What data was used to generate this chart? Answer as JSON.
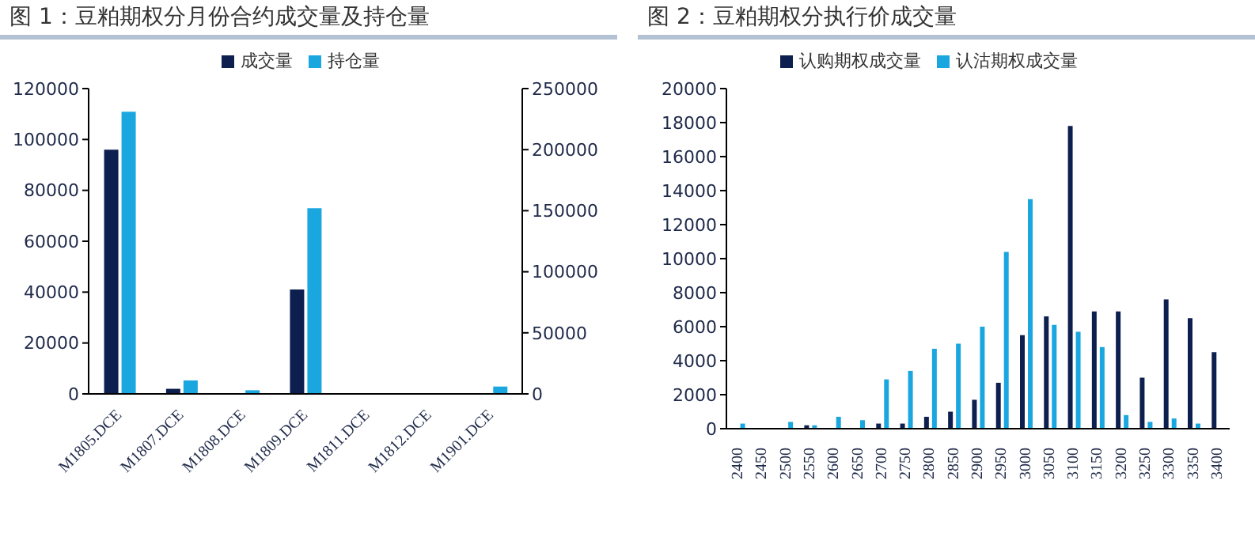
{
  "chart_data": [
    {
      "type": "bar",
      "title": "图 1：豆粕期权分月份合约成交量及持仓量",
      "categories": [
        "M1805.DCE",
        "M1807.DCE",
        "M1808.DCE",
        "M1809.DCE",
        "M1811.DCE",
        "M1812.DCE",
        "M1901.DCE"
      ],
      "series": [
        {
          "name": "成交量",
          "color": "#0d1f4e",
          "values": [
            96000,
            2000,
            0,
            41000,
            0,
            0,
            0
          ]
        },
        {
          "name": "持仓量",
          "color": "#1aa7e0",
          "axis": "y2",
          "values": [
            231000,
            11000,
            3000,
            152000,
            null,
            null,
            6000
          ]
        }
      ],
      "ylim": [
        0,
        120000
      ],
      "yticks": [
        0,
        20000,
        40000,
        60000,
        80000,
        100000,
        120000
      ],
      "y2lim": [
        0,
        250000
      ],
      "y2ticks": [
        0,
        50000,
        100000,
        150000,
        200000,
        250000
      ],
      "grid": false,
      "legend": "top"
    },
    {
      "type": "bar",
      "title": "图 2：豆粕期权分执行价成交量",
      "categories": [
        "2400",
        "2450",
        "2500",
        "2550",
        "2600",
        "2650",
        "2700",
        "2750",
        "2800",
        "2850",
        "2900",
        "2950",
        "3000",
        "3050",
        "3100",
        "3150",
        "3200",
        "3250",
        "3300",
        "3350",
        "3400"
      ],
      "series": [
        {
          "name": "认购期权成交量",
          "color": "#0d1f4e",
          "values": [
            0,
            0,
            0,
            200,
            null,
            null,
            300,
            300,
            700,
            1000,
            1700,
            2700,
            5500,
            6600,
            17800,
            6900,
            6900,
            3000,
            7600,
            6500,
            4500
          ]
        },
        {
          "name": "认沽期权成交量",
          "color": "#1aa7e0",
          "values": [
            300,
            null,
            400,
            200,
            700,
            500,
            2900,
            3400,
            4700,
            5000,
            6000,
            10400,
            13500,
            6100,
            5700,
            4800,
            800,
            400,
            600,
            300,
            null
          ]
        }
      ],
      "ylim": [
        0,
        20000
      ],
      "yticks": [
        0,
        2000,
        4000,
        6000,
        8000,
        10000,
        12000,
        14000,
        16000,
        18000,
        20000
      ],
      "grid": false,
      "legend": "top"
    }
  ]
}
